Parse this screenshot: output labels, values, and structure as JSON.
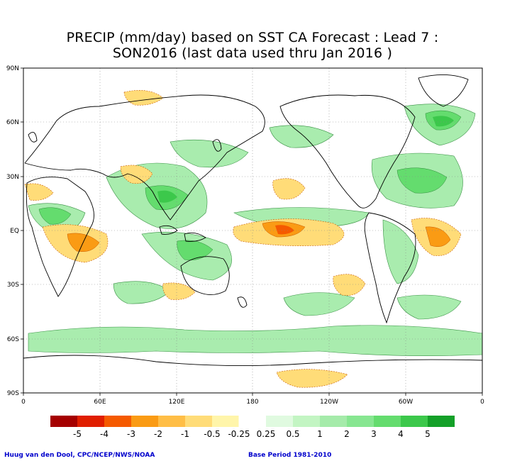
{
  "title_line1": "PRECIP (mm/day) based on SST CA Forecast : Lead 7 :",
  "title_line2": "SON2016 (last data used thru Jan 2016 )",
  "y_axis_labels": [
    "90N",
    "60N",
    "30N",
    "EQ",
    "30S",
    "60S",
    "90S"
  ],
  "x_axis_labels": [
    "0",
    "60E",
    "120E",
    "180",
    "120W",
    "60W",
    "0"
  ],
  "legend": {
    "labels": [
      "-5",
      "-4",
      "-3",
      "-2",
      "-1",
      "-0.5",
      "-0.25",
      "0.25",
      "0.5",
      "1",
      "2",
      "3",
      "4",
      "5"
    ],
    "colors": [
      "#a50000",
      "#e01e00",
      "#f55a00",
      "#fa9b14",
      "#ffbe46",
      "#ffdc78",
      "#fff5aa",
      "#ffffff",
      "#e0fae0",
      "#c3f5c3",
      "#a5ebaa",
      "#87e691",
      "#64dc6e",
      "#3cc84b",
      "#14a028"
    ]
  },
  "credit_left": "Huug van den Dool, CPC/NCEP/NWS/NOAA",
  "credit_right": "Base Period 1981-2010"
}
